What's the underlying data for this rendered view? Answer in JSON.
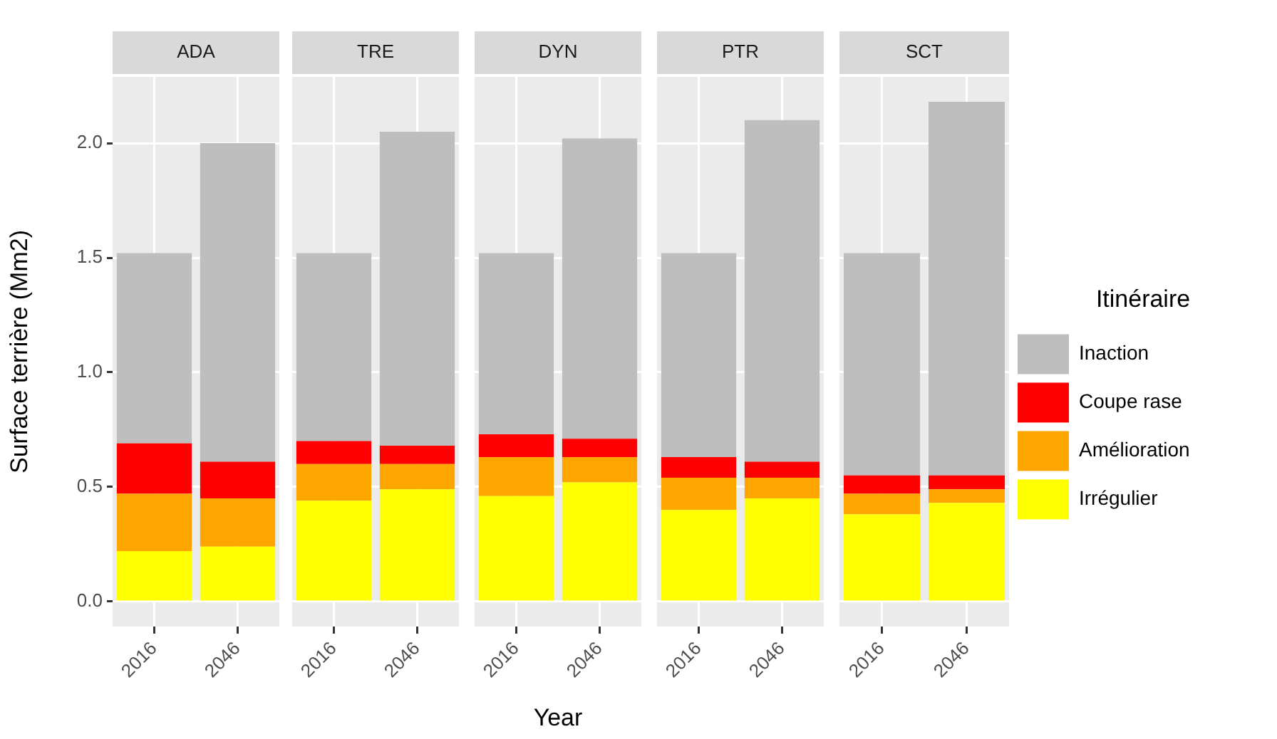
{
  "chart_data": [
    {
      "type": "bar",
      "title": "ADA",
      "ylabel": "Surface terrière (Mm2)",
      "categories": [
        "2016",
        "2046"
      ],
      "stacked": true,
      "ylim": [
        -0.109,
        2.289
      ],
      "yticks": [
        {
          "value": 0,
          "label": "0.0"
        },
        {
          "value": 0.5,
          "label": "0.5"
        },
        {
          "value": 1,
          "label": "1.0"
        },
        {
          "value": 1.5,
          "label": "1.5"
        },
        {
          "value": 2,
          "label": "2.0"
        }
      ],
      "grid": true,
      "legend": false,
      "series": [
        {
          "color": "#ffff00",
          "values": [
            0.22,
            0.24
          ]
        },
        {
          "color": "#ffa500",
          "values": [
            0.25,
            0.21
          ]
        },
        {
          "color": "#ff0000",
          "values": [
            0.22,
            0.16
          ]
        },
        {
          "color": "#bebebe",
          "values": [
            0.83,
            1.39
          ]
        }
      ]
    },
    {
      "type": "bar",
      "title": "TRE",
      "categories": [
        "2016",
        "2046"
      ],
      "stacked": true,
      "ylim": [
        -0.109,
        2.289
      ],
      "yticks": [
        0,
        0.5,
        1,
        1.5,
        2
      ],
      "grid": true,
      "legend": false,
      "tick_labels": "x",
      "series": [
        {
          "color": "#ffff00",
          "values": [
            0.44,
            0.49
          ]
        },
        {
          "color": "#ffa500",
          "values": [
            0.16,
            0.11
          ]
        },
        {
          "color": "#ff0000",
          "values": [
            0.1,
            0.08
          ]
        },
        {
          "color": "#bebebe",
          "values": [
            0.82,
            1.37
          ]
        }
      ]
    },
    {
      "type": "bar",
      "title": "DYN",
      "xlabel": "Year",
      "categories": [
        "2016",
        "2046"
      ],
      "stacked": true,
      "ylim": [
        -0.109,
        2.289
      ],
      "yticks": [
        0,
        0.5,
        1,
        1.5,
        2
      ],
      "grid": true,
      "legend": false,
      "tick_labels": "x",
      "series": [
        {
          "color": "#ffff00",
          "values": [
            0.46,
            0.52
          ]
        },
        {
          "color": "#ffa500",
          "values": [
            0.17,
            0.11
          ]
        },
        {
          "color": "#ff0000",
          "values": [
            0.1,
            0.08
          ]
        },
        {
          "color": "#bebebe",
          "values": [
            0.79,
            1.31
          ]
        }
      ]
    },
    {
      "type": "bar",
      "title": "PTR",
      "categories": [
        "2016",
        "2046"
      ],
      "stacked": true,
      "ylim": [
        -0.109,
        2.289
      ],
      "yticks": [
        0,
        0.5,
        1,
        1.5,
        2
      ],
      "grid": true,
      "legend": false,
      "tick_labels": "x",
      "series": [
        {
          "color": "#ffff00",
          "values": [
            0.4,
            0.45
          ]
        },
        {
          "color": "#ffa500",
          "values": [
            0.14,
            0.09
          ]
        },
        {
          "color": "#ff0000",
          "values": [
            0.09,
            0.07
          ]
        },
        {
          "color": "#bebebe",
          "values": [
            0.89,
            1.49
          ]
        }
      ]
    },
    {
      "type": "bar",
      "title": "SCT",
      "legend_title": "Itinéraire",
      "categories": [
        "2016",
        "2046"
      ],
      "stacked": true,
      "ylim": [
        -0.109,
        2.289
      ],
      "yticks": [
        0,
        0.5,
        1,
        1.5,
        2
      ],
      "grid": true,
      "legend": "right",
      "tick_labels": "x",
      "series": [
        {
          "name": "Irrégulier",
          "color": "#ffff00",
          "values": [
            0.38,
            0.43
          ]
        },
        {
          "name": "Amélioration",
          "color": "#ffa500",
          "values": [
            0.09,
            0.06
          ]
        },
        {
          "name": "Coupe rase",
          "color": "#ff0000",
          "values": [
            0.08,
            0.06
          ]
        },
        {
          "name": "Inaction",
          "color": "#bebebe",
          "values": [
            0.97,
            1.63
          ]
        }
      ]
    }
  ]
}
